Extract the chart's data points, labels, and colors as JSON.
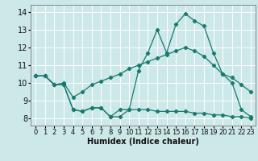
{
  "xlabel": "Humidex (Indice chaleur)",
  "background_color": "#cce8e8",
  "grid_color": "#ffffff",
  "line_color": "#1a7a6e",
  "xlim": [
    -0.5,
    23.5
  ],
  "ylim": [
    7.6,
    14.4
  ],
  "xticks": [
    0,
    1,
    2,
    3,
    4,
    5,
    6,
    7,
    8,
    9,
    10,
    11,
    12,
    13,
    14,
    15,
    16,
    17,
    18,
    19,
    20,
    21,
    22,
    23
  ],
  "yticks": [
    8,
    9,
    10,
    11,
    12,
    13,
    14
  ],
  "line1_x": [
    0,
    1,
    2,
    3,
    4,
    5,
    6,
    7,
    8,
    9,
    10,
    11,
    12,
    13,
    14,
    15,
    16,
    17,
    18,
    19,
    20,
    21,
    22,
    23
  ],
  "line1_y": [
    10.4,
    10.4,
    9.9,
    9.9,
    8.5,
    8.4,
    8.6,
    8.6,
    8.1,
    8.1,
    8.5,
    10.7,
    11.7,
    13.0,
    11.7,
    13.3,
    13.9,
    13.5,
    13.2,
    11.7,
    10.5,
    10.0,
    8.5,
    8.1
  ],
  "line2_x": [
    0,
    1,
    2,
    3,
    4,
    5,
    6,
    7,
    8,
    9,
    10,
    11,
    12,
    13,
    14,
    15,
    16,
    17,
    18,
    19,
    20,
    21,
    22,
    23
  ],
  "line2_y": [
    10.4,
    10.4,
    9.9,
    10.0,
    9.2,
    9.5,
    9.9,
    10.1,
    10.3,
    10.5,
    10.8,
    11.0,
    11.2,
    11.4,
    11.6,
    11.8,
    12.0,
    11.8,
    11.5,
    11.0,
    10.5,
    10.3,
    9.9,
    9.5
  ],
  "line3_x": [
    0,
    1,
    2,
    3,
    4,
    5,
    6,
    7,
    8,
    9,
    10,
    11,
    12,
    13,
    14,
    15,
    16,
    17,
    18,
    19,
    20,
    21,
    22,
    23
  ],
  "line3_y": [
    10.4,
    10.4,
    9.9,
    9.9,
    8.5,
    8.4,
    8.6,
    8.6,
    8.1,
    8.5,
    8.5,
    8.5,
    8.5,
    8.4,
    8.4,
    8.4,
    8.4,
    8.3,
    8.3,
    8.2,
    8.2,
    8.1,
    8.1,
    8.0
  ],
  "xlabel_fontsize": 7,
  "tick_fontsize": 6,
  "ytick_fontsize": 7,
  "linewidth": 0.9,
  "markersize": 2.2
}
